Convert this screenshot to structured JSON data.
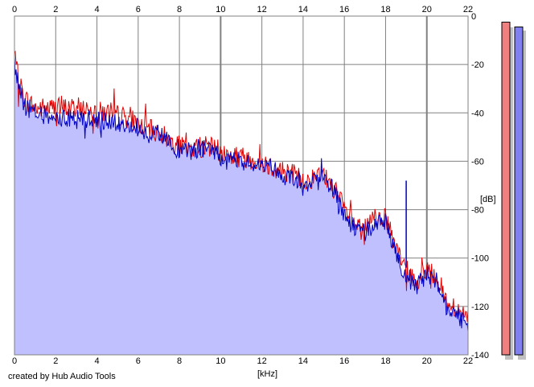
{
  "app": {
    "credit": "created by Hub Audio Tools"
  },
  "chart_data": {
    "type": "line",
    "title": "",
    "xlabel": "[kHz]",
    "ylabel": "[dB]",
    "xlim": [
      0,
      22
    ],
    "ylim": [
      -140,
      0
    ],
    "x_ticks": [
      "0",
      "2",
      "4",
      "6",
      "8",
      "10",
      "12",
      "14",
      "16",
      "18",
      "20",
      "22"
    ],
    "y_ticks": [
      "0",
      "-20",
      "-40",
      "-60",
      "-80",
      "-100",
      "-120",
      "-140"
    ],
    "grid": true,
    "legend": "none",
    "colors": {
      "left": "#e00000",
      "right": "#0000c0",
      "fill": "#c0c0ff",
      "meter_left": "#f08080",
      "meter_right": "#8080f0"
    },
    "series": [
      {
        "key": "left",
        "x": [
          0,
          0.2,
          0.5,
          1,
          1.5,
          2,
          2.5,
          3,
          3.5,
          4,
          4.5,
          5,
          5.5,
          6,
          6.5,
          7,
          7.5,
          8,
          8.5,
          9,
          9.5,
          10,
          10.5,
          11,
          11.5,
          12,
          12.5,
          13,
          13.5,
          14,
          14.5,
          15,
          15.5,
          16,
          16.5,
          17,
          17.5,
          18,
          18.5,
          19,
          19.5,
          20,
          20.5,
          21,
          21.5,
          22
        ],
        "values": [
          -16,
          -27,
          -34,
          -38,
          -38,
          -38,
          -38,
          -38,
          -38,
          -39,
          -40,
          -41,
          -42,
          -44,
          -47,
          -48,
          -51,
          -54,
          -55,
          -54,
          -54,
          -56,
          -58,
          -58,
          -59,
          -60,
          -62,
          -64,
          -65,
          -68,
          -67,
          -66,
          -71,
          -80,
          -86,
          -88,
          -83,
          -83,
          -97,
          -105,
          -110,
          -104,
          -108,
          -119,
          -121,
          -125
        ]
      },
      {
        "key": "right",
        "x": [
          0,
          0.2,
          0.5,
          1,
          1.5,
          2,
          2.5,
          3,
          3.5,
          4,
          4.5,
          5,
          5.5,
          6,
          6.5,
          7,
          7.5,
          8,
          8.5,
          9,
          9.5,
          10,
          10.5,
          11,
          11.5,
          12,
          12.5,
          13,
          13.5,
          14,
          14.5,
          15,
          15.5,
          16,
          16.5,
          17,
          17.5,
          18,
          18.5,
          19,
          19.5,
          20,
          20.5,
          21,
          21.5,
          22
        ],
        "values": [
          -18,
          -29,
          -37,
          -40,
          -41,
          -42,
          -42,
          -42,
          -43,
          -43,
          -44,
          -44,
          -44,
          -46,
          -48,
          -49,
          -52,
          -55,
          -56,
          -55,
          -55,
          -58,
          -60,
          -60,
          -61,
          -61,
          -63,
          -66,
          -66,
          -69,
          -69,
          -67,
          -72,
          -82,
          -88,
          -90,
          -85,
          -85,
          -99,
          -107,
          -112,
          -106,
          -110,
          -121,
          -124,
          -127
        ]
      }
    ],
    "annotations": [
      {
        "x": 19,
        "y": -68,
        "label": ""
      }
    ],
    "meters": {
      "left": -2.5,
      "right": -4.5
    }
  }
}
